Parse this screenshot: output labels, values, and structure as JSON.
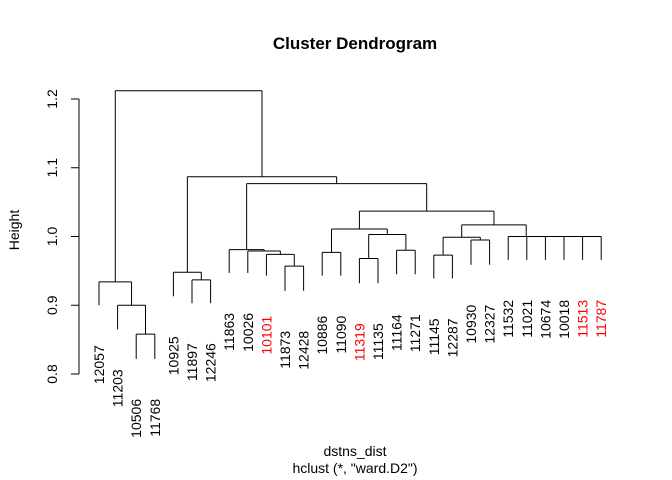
{
  "chart_data": {
    "type": "dendrogram",
    "title": "Cluster Dendrogram",
    "xlabel": "dstns_dist",
    "sublabel": "hclust (*, \"ward.D2\")",
    "ylabel": "Height",
    "ylim": [
      0.8,
      1.22
    ],
    "yticks": [
      0.8,
      0.9,
      1.0,
      1.1,
      1.2
    ],
    "ytick_labels": [
      "0.8",
      "0.9",
      "1.0",
      "1.1",
      "1.2"
    ],
    "label_colors": {
      "default": "#000000",
      "highlight": "#ff0000"
    },
    "leaves": [
      {
        "label": "12057",
        "hang": 0.9,
        "color": "#000000"
      },
      {
        "label": "11203",
        "hang": 0.865,
        "color": "#000000"
      },
      {
        "label": "10506",
        "hang": 0.822,
        "color": "#000000"
      },
      {
        "label": "11768",
        "hang": 0.822,
        "color": "#000000"
      },
      {
        "label": "10925",
        "hang": 0.913,
        "color": "#000000"
      },
      {
        "label": "11897",
        "hang": 0.903,
        "color": "#000000"
      },
      {
        "label": "12246",
        "hang": 0.903,
        "color": "#000000"
      },
      {
        "label": "11863",
        "hang": 0.947,
        "color": "#000000"
      },
      {
        "label": "10026",
        "hang": 0.947,
        "color": "#000000"
      },
      {
        "label": "10101",
        "hang": 0.943,
        "color": "#ff0000"
      },
      {
        "label": "11873",
        "hang": 0.921,
        "color": "#000000"
      },
      {
        "label": "12428",
        "hang": 0.921,
        "color": "#000000"
      },
      {
        "label": "10886",
        "hang": 0.943,
        "color": "#000000"
      },
      {
        "label": "11090",
        "hang": 0.943,
        "color": "#000000"
      },
      {
        "label": "11319",
        "hang": 0.932,
        "color": "#ff0000"
      },
      {
        "label": "11135",
        "hang": 0.932,
        "color": "#000000"
      },
      {
        "label": "11164",
        "hang": 0.945,
        "color": "#000000"
      },
      {
        "label": "11271",
        "hang": 0.945,
        "color": "#000000"
      },
      {
        "label": "11145",
        "hang": 0.939,
        "color": "#000000"
      },
      {
        "label": "12287",
        "hang": 0.939,
        "color": "#000000"
      },
      {
        "label": "10930",
        "hang": 0.959,
        "color": "#000000"
      },
      {
        "label": "12327",
        "hang": 0.959,
        "color": "#000000"
      },
      {
        "label": "11532",
        "hang": 0.966,
        "color": "#000000"
      },
      {
        "label": "11021",
        "hang": 0.966,
        "color": "#000000"
      },
      {
        "label": "10674",
        "hang": 0.966,
        "color": "#000000"
      },
      {
        "label": "10018",
        "hang": 0.966,
        "color": "#000000"
      },
      {
        "label": "11513",
        "hang": 0.966,
        "color": "#ff0000"
      },
      {
        "label": "11787",
        "hang": 0.966,
        "color": "#ff0000"
      }
    ],
    "merges": [
      {
        "left": "L26",
        "right": "L27",
        "height": 1.0
      },
      {
        "left": "L25",
        "right": "M0",
        "height": 1.0
      },
      {
        "left": "L24",
        "right": "M1",
        "height": 1.0
      },
      {
        "left": "L23",
        "right": "M2",
        "height": 1.0
      },
      {
        "left": "L22",
        "right": "M3",
        "height": 1.0
      },
      {
        "left": "L20",
        "right": "L21",
        "height": 0.995
      },
      {
        "left": "L18",
        "right": "L19",
        "height": 0.973
      },
      {
        "left": "M6",
        "right": "M5",
        "height": 0.999
      },
      {
        "left": "M7",
        "right": "M4",
        "height": 1.017
      },
      {
        "left": "L16",
        "right": "L17",
        "height": 0.98
      },
      {
        "left": "L14",
        "right": "L15",
        "height": 0.968
      },
      {
        "left": "M10",
        "right": "M9",
        "height": 1.003
      },
      {
        "left": "L12",
        "right": "L13",
        "height": 0.977
      },
      {
        "left": "M12",
        "right": "M11",
        "height": 1.011
      },
      {
        "left": "M13",
        "right": "M8",
        "height": 1.037
      },
      {
        "left": "L10",
        "right": "L11",
        "height": 0.957
      },
      {
        "left": "L9",
        "right": "M15",
        "height": 0.974
      },
      {
        "left": "L8",
        "right": "M16",
        "height": 0.979
      },
      {
        "left": "L7",
        "right": "M17",
        "height": 0.981
      },
      {
        "left": "M18",
        "right": "M14",
        "height": 1.077
      },
      {
        "left": "L5",
        "right": "L6",
        "height": 0.937
      },
      {
        "left": "L4",
        "right": "M20",
        "height": 0.948
      },
      {
        "left": "M21",
        "right": "M19",
        "height": 1.087
      },
      {
        "left": "L2",
        "right": "L3",
        "height": 0.858
      },
      {
        "left": "L1",
        "right": "M23",
        "height": 0.9
      },
      {
        "left": "L0",
        "right": "M24",
        "height": 0.934
      },
      {
        "left": "M25",
        "right": "M22",
        "height": 1.212
      }
    ]
  }
}
